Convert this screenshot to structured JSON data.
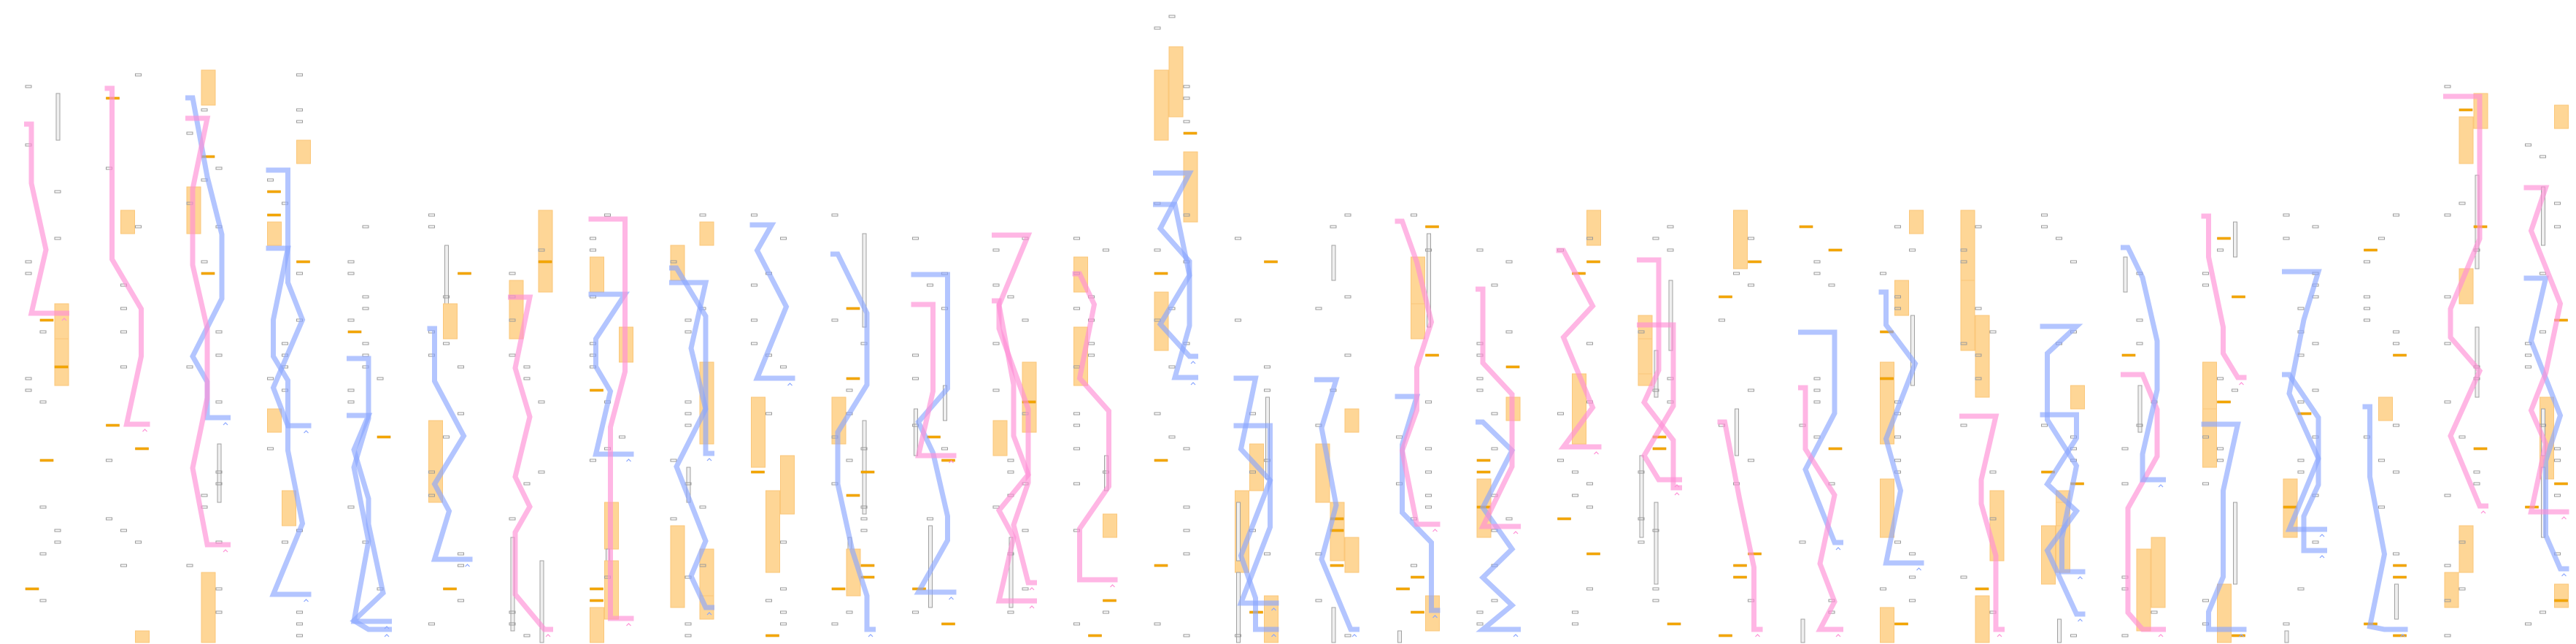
{
  "colors": {
    "background": "#ffffff",
    "block_fill": "#fed696",
    "block_stroke": "#fbc77a",
    "marker_outline": "#9a9a9a",
    "highlight_bar": "#f5a800",
    "path_pink": "#ff8fd6",
    "path_blue": "#8aa6ff",
    "rail_gray": "#a0a0a0"
  },
  "icons": [
    "caret-up-icon"
  ]
}
